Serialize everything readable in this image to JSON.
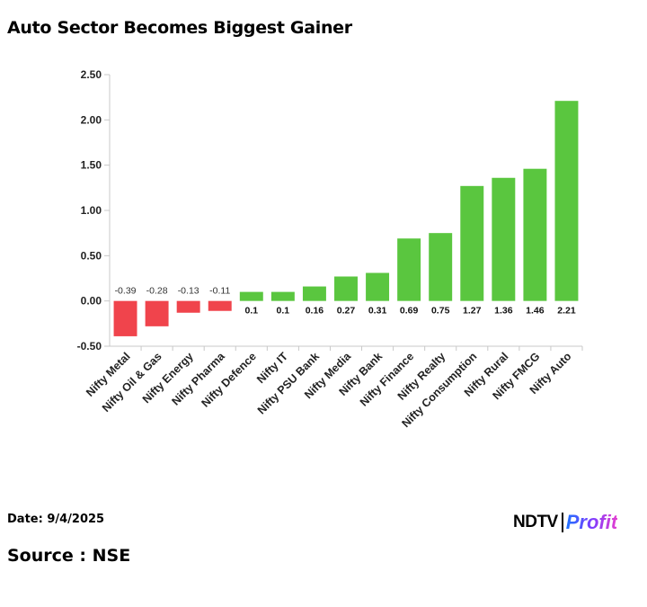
{
  "title": "Auto Sector Becomes Biggest Gainer",
  "date": "Date: 9/4/2025",
  "source": "Source : NSE",
  "logo": {
    "ndtv": "NDTV",
    "profit": "Profit"
  },
  "colors": {
    "positive": "#5ac63f",
    "negative": "#f0444c",
    "axis": "#c8c8c8"
  },
  "chart_data": {
    "type": "bar",
    "title": "Auto Sector Becomes Biggest Gainer",
    "xlabel": "",
    "ylabel": "",
    "ylim": [
      -0.5,
      2.5
    ],
    "yticks": [
      "2.50",
      "2.00",
      "1.50",
      "1.00",
      "0.50",
      "0.00",
      "-0.50"
    ],
    "ytick_values": [
      2.5,
      2.0,
      1.5,
      1.0,
      0.5,
      0.0,
      -0.5
    ],
    "grid": false,
    "categories": [
      "Nifty Metal",
      "Nifty Oil & Gas",
      "Nifty Energy",
      "Nifty Pharma",
      "Nifty Defence",
      "Nifty IT",
      "Nifty PSU Bank",
      "Nifty Media",
      "Nifty Bank",
      "Nifty Finance",
      "Nifty Realty",
      "Nifty Consumption",
      "Nifty Rural",
      "Nifty FMCG",
      "Nifty Auto"
    ],
    "values": [
      -0.39,
      -0.28,
      -0.13,
      -0.11,
      0.1,
      0.1,
      0.16,
      0.27,
      0.31,
      0.69,
      0.75,
      1.27,
      1.36,
      1.46,
      2.21
    ],
    "labels": [
      "-0.39",
      "-0.28",
      "-0.13",
      "-0.11",
      "0.1",
      "0.1",
      "0.16",
      "0.27",
      "0.31",
      "0.69",
      "0.75",
      "1.27",
      "1.36",
      "1.46",
      "2.21"
    ]
  }
}
